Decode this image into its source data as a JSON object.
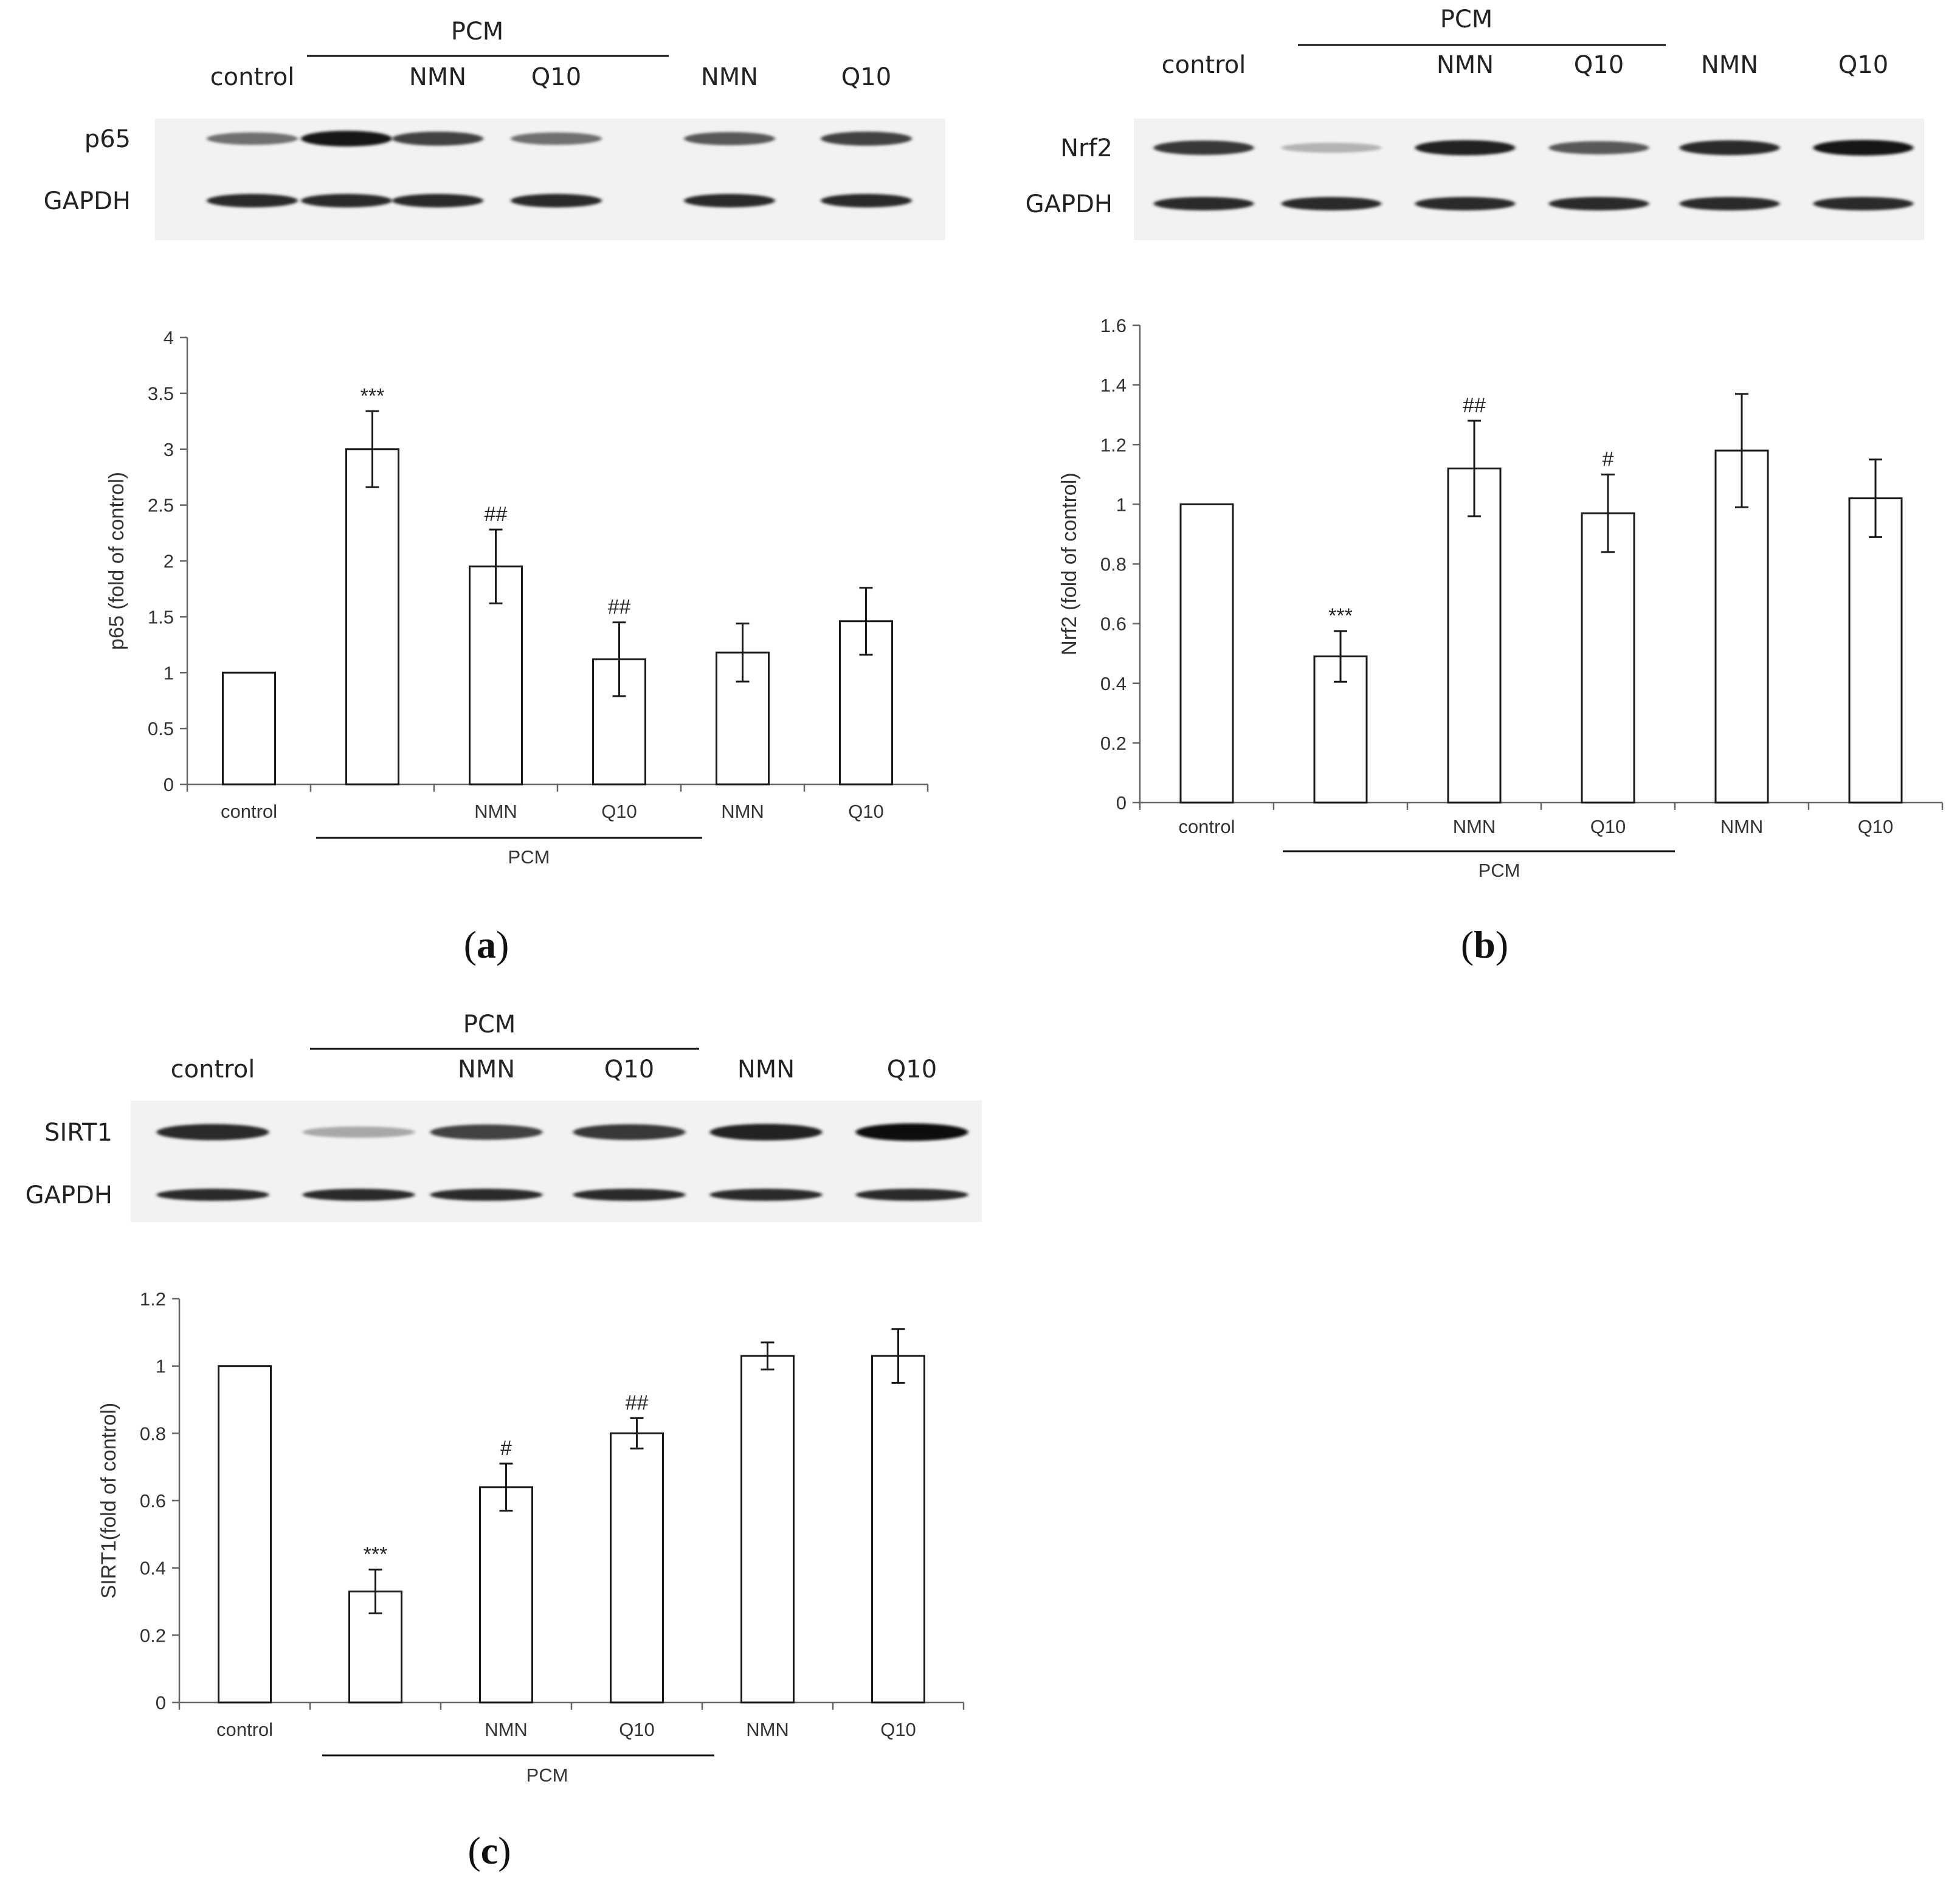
{
  "panels": [
    {
      "letter": "a",
      "blot": {
        "group_label": "PCM",
        "lane_labels": [
          "control",
          "",
          "NMN",
          "Q10",
          "NMN",
          "Q10"
        ],
        "row_labels": [
          "p65",
          "GAPDH"
        ],
        "band_intensity": [
          [
            0.55,
            0.95,
            0.75,
            0.55,
            0.65,
            0.75
          ],
          [
            0.85,
            0.85,
            0.85,
            0.85,
            0.85,
            0.85
          ]
        ]
      },
      "chart_data": {
        "type": "bar",
        "categories": [
          "control",
          "",
          "NMN",
          "Q10",
          "NMN",
          "Q10"
        ],
        "values": [
          1,
          3.0,
          1.95,
          1.12,
          1.18,
          1.46
        ],
        "errors": [
          0,
          0.34,
          0.33,
          0.33,
          0.26,
          0.3
        ],
        "annotations": [
          "",
          "***",
          "##",
          "##",
          "",
          ""
        ],
        "ylabel": "p65 (fold of control)",
        "ylim": [
          0,
          4
        ],
        "yticks": [
          0,
          0.5,
          1,
          1.5,
          2,
          2.5,
          3,
          3.5,
          4
        ],
        "group_label": "PCM",
        "grid": false
      }
    },
    {
      "letter": "b",
      "blot": {
        "group_label": "PCM",
        "lane_labels": [
          "control",
          "",
          "NMN",
          "Q10",
          "NMN",
          "Q10"
        ],
        "row_labels": [
          "Nrf2",
          "GAPDH"
        ],
        "band_intensity": [
          [
            0.8,
            0.25,
            0.9,
            0.65,
            0.85,
            0.95
          ],
          [
            0.85,
            0.85,
            0.85,
            0.85,
            0.85,
            0.85
          ]
        ]
      },
      "chart_data": {
        "type": "bar",
        "categories": [
          "control",
          "",
          "NMN",
          "Q10",
          "NMN",
          "Q10"
        ],
        "values": [
          1,
          0.49,
          1.12,
          0.97,
          1.18,
          1.02
        ],
        "errors": [
          0,
          0.085,
          0.16,
          0.13,
          0.19,
          0.13
        ],
        "annotations": [
          "",
          "***",
          "##",
          "#",
          "",
          ""
        ],
        "ylabel": "Nrf2 (fold of control)",
        "ylim": [
          0,
          1.6
        ],
        "yticks": [
          0,
          0.2,
          0.4,
          0.6,
          0.8,
          1,
          1.2,
          1.4,
          1.6
        ],
        "group_label": "PCM",
        "grid": false
      }
    },
    {
      "letter": "c",
      "blot": {
        "group_label": "PCM",
        "lane_labels": [
          "control",
          "",
          "NMN",
          "Q10",
          "NMN",
          "Q10"
        ],
        "row_labels": [
          "SIRT1",
          "GAPDH"
        ],
        "band_intensity": [
          [
            0.85,
            0.3,
            0.75,
            0.8,
            0.9,
            1.0
          ],
          [
            0.85,
            0.85,
            0.85,
            0.85,
            0.85,
            0.85
          ]
        ]
      },
      "chart_data": {
        "type": "bar",
        "categories": [
          "control",
          "",
          "NMN",
          "Q10",
          "NMN",
          "Q10"
        ],
        "values": [
          1,
          0.33,
          0.64,
          0.8,
          1.03,
          1.03
        ],
        "errors": [
          0,
          0.065,
          0.07,
          0.045,
          0.04,
          0.08
        ],
        "annotations": [
          "",
          "***",
          "#",
          "##",
          "",
          ""
        ],
        "ylabel": "SIRT1(fold of control)",
        "ylim": [
          0,
          1.2
        ],
        "yticks": [
          0,
          0.2,
          0.4,
          0.6,
          0.8,
          1,
          1.2
        ],
        "group_label": "PCM",
        "grid": false
      }
    }
  ]
}
